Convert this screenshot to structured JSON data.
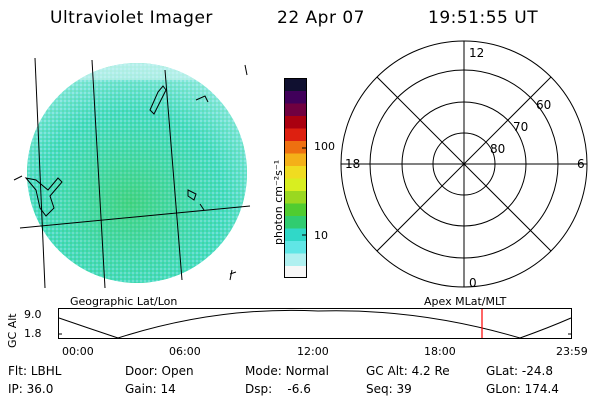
{
  "header": {
    "instrument": "Ultraviolet Imager",
    "date": "22 Apr 07",
    "time": "19:51:55 UT"
  },
  "colorbar": {
    "unit_label": "photon cm⁻²s⁻¹",
    "ticks": [
      "100",
      "10"
    ],
    "colors": [
      "#f7f7f7",
      "#b0f0f0",
      "#60e6e6",
      "#30d8c8",
      "#30cc70",
      "#50cc30",
      "#9ad820",
      "#d8ee20",
      "#f0dc20",
      "#f4b018",
      "#ee7010",
      "#dd2010",
      "#aa0010",
      "#700040",
      "#40005a",
      "#101030"
    ]
  },
  "polar": {
    "mlt_labels": {
      "top": "12",
      "right": "6",
      "bottom": "0",
      "left": "18"
    },
    "lat_labels": [
      "60",
      "70",
      "80"
    ]
  },
  "timeline": {
    "left_label": "Geographic Lat/Lon",
    "right_label": "Apex MLat/MLT",
    "axis_title": "GC Alt",
    "y_ticks": [
      "9.0",
      "1.8"
    ],
    "x_ticks": [
      "00:00",
      "06:00",
      "12:00",
      "18:00",
      "23:59"
    ],
    "marker_color": "#ff0000"
  },
  "params": {
    "row1": [
      {
        "label": "Flt: ",
        "value": "LBHL"
      },
      {
        "label": "Door: ",
        "value": "Open"
      },
      {
        "label": "Mode: ",
        "value": "Normal"
      },
      {
        "label": "GC Alt: ",
        "value": "4.2 Re"
      },
      {
        "label": "GLat: ",
        "value": "-24.8"
      }
    ],
    "row2": [
      {
        "label": "IP: ",
        "value": "36.0"
      },
      {
        "label": "Gain: ",
        "value": "14"
      },
      {
        "label": "Dsp: ",
        "value": "   -6.6"
      },
      {
        "label": "Seq: ",
        "value": "39"
      },
      {
        "label": "GLon: ",
        "value": "174.4"
      }
    ]
  }
}
